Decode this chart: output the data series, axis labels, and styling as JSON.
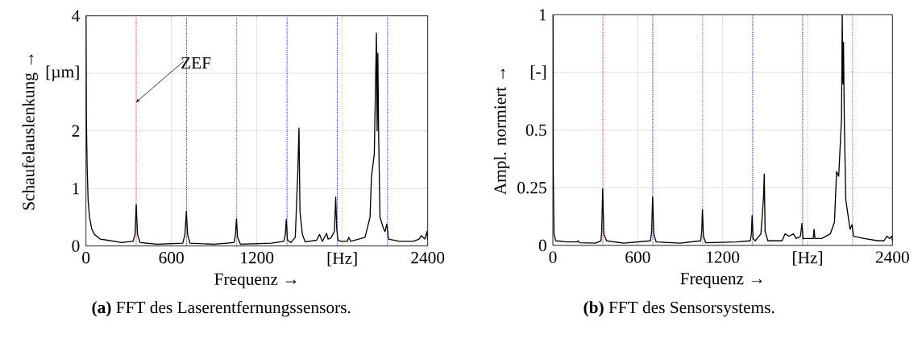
{
  "chart_data": [
    {
      "type": "line",
      "xlabel": "Frequenz →",
      "ylabel": "Schaufelauslenkung →",
      "color": "#000000",
      "x": [
        0,
        3,
        8,
        15,
        25,
        40,
        60,
        100,
        150,
        250,
        330,
        345,
        353,
        362,
        380,
        500,
        680,
        695,
        705,
        714,
        730,
        900,
        1040,
        1050,
        1057,
        1065,
        1085,
        1300,
        1390,
        1400,
        1407,
        1415,
        1440,
        1470,
        1488,
        1496,
        1503,
        1520,
        1540,
        1620,
        1640,
        1660,
        1690,
        1700,
        1720,
        1745,
        1754,
        1761,
        1770,
        1790,
        1835,
        1846,
        1860,
        1960,
        1995,
        2005,
        2025,
        2040,
        2045,
        2050,
        2055,
        2065,
        2090,
        2100,
        2113,
        2125,
        2200,
        2300,
        2340,
        2355,
        2380,
        2395,
        2400
      ],
      "values": [
        4.0,
        2.2,
        1.4,
        0.8,
        0.5,
        0.3,
        0.2,
        0.12,
        0.1,
        0.06,
        0.08,
        0.2,
        0.72,
        0.2,
        0.06,
        0.03,
        0.05,
        0.2,
        0.6,
        0.2,
        0.05,
        0.03,
        0.06,
        0.2,
        0.47,
        0.15,
        0.03,
        0.05,
        0.08,
        0.2,
        0.46,
        0.1,
        0.06,
        0.15,
        1.3,
        2.05,
        0.6,
        0.2,
        0.07,
        0.1,
        0.2,
        0.08,
        0.22,
        0.12,
        0.14,
        0.25,
        0.85,
        0.3,
        0.1,
        0.08,
        0.08,
        0.15,
        0.08,
        0.15,
        0.5,
        1.2,
        1.6,
        3.7,
        2.0,
        3.35,
        2.0,
        0.5,
        0.3,
        0.25,
        0.38,
        0.12,
        0.08,
        0.08,
        0.12,
        0.18,
        0.12,
        0.25,
        0.1
      ],
      "xlim": [
        0,
        2400
      ],
      "ylim": [
        0,
        4
      ],
      "xticks": [
        0,
        600,
        1200,
        {
          "value": 1800,
          "label": "[Hz]"
        },
        2400
      ],
      "yticks": [
        0,
        1,
        2,
        {
          "value": 3,
          "label": "[µm]"
        },
        4
      ],
      "grid": true,
      "ref_lines": [
        {
          "axis": "x",
          "value": 353,
          "color": "#ff0000",
          "line_style": "dotted"
        },
        {
          "axis": "x",
          "value": 706,
          "color": "#0000ff",
          "line_style": "dotted"
        },
        {
          "axis": "x",
          "value": 1059,
          "color": "#0000ff",
          "line_style": "dotted"
        },
        {
          "axis": "x",
          "value": 1412,
          "color": "#0000ff",
          "line_style": "dotted"
        },
        {
          "axis": "x",
          "value": 1765,
          "color": "#0000ff",
          "line_style": "dotted"
        },
        {
          "axis": "x",
          "value": 2118,
          "color": "#0000ff",
          "line_style": "dotted"
        }
      ],
      "annotations": [
        {
          "text": "ZEF",
          "x": 353,
          "y": 2.5
        },
        "**(a)** FFT des Laserentfernungssensors."
      ]
    },
    {
      "type": "line",
      "xlabel": "Frequenz →",
      "ylabel": "Ampl. normiert →",
      "color": "#000000",
      "x": [
        0,
        3,
        8,
        20,
        100,
        170,
        179,
        188,
        300,
        340,
        345,
        352,
        360,
        380,
        500,
        690,
        698,
        705,
        713,
        730,
        900,
        1045,
        1052,
        1057,
        1064,
        1080,
        1300,
        1395,
        1403,
        1408,
        1415,
        1430,
        1470,
        1488,
        1494,
        1500,
        1520,
        1620,
        1640,
        1670,
        1700,
        1720,
        1750,
        1760,
        1768,
        1790,
        1840,
        1846,
        1852,
        1900,
        1960,
        1990,
        2005,
        2020,
        2040,
        2045,
        2050,
        2054,
        2060,
        2070,
        2100,
        2114,
        2125,
        2200,
        2300,
        2340,
        2360,
        2380,
        2395,
        2400
      ],
      "values": [
        1.0,
        0.3,
        0.05,
        0.02,
        0.015,
        0.015,
        0.02,
        0.012,
        0.01,
        0.02,
        0.06,
        0.245,
        0.05,
        0.02,
        0.01,
        0.02,
        0.06,
        0.21,
        0.05,
        0.015,
        0.01,
        0.02,
        0.06,
        0.155,
        0.04,
        0.012,
        0.015,
        0.02,
        0.05,
        0.13,
        0.03,
        0.02,
        0.05,
        0.2,
        0.31,
        0.06,
        0.02,
        0.02,
        0.05,
        0.04,
        0.05,
        0.03,
        0.04,
        0.095,
        0.03,
        0.03,
        0.03,
        0.07,
        0.03,
        0.03,
        0.05,
        0.1,
        0.32,
        0.3,
        0.55,
        1.0,
        0.7,
        0.88,
        0.53,
        0.2,
        0.07,
        0.09,
        0.04,
        0.03,
        0.02,
        0.02,
        0.04,
        0.03,
        0.04,
        0.02
      ],
      "xlim": [
        0,
        2400
      ],
      "ylim": [
        0,
        1
      ],
      "xticks": [
        0,
        600,
        1200,
        {
          "value": 1800,
          "label": "[Hz]"
        },
        2400
      ],
      "yticks": [
        0,
        0.25,
        0.5,
        {
          "value": 0.75,
          "label": "[-]"
        },
        1
      ],
      "grid": true,
      "ref_lines": [
        {
          "axis": "x",
          "value": 353,
          "color": "#ff0000",
          "line_style": "dotted"
        },
        {
          "axis": "x",
          "value": 706,
          "color": "#0000ff",
          "line_style": "dotted"
        },
        {
          "axis": "x",
          "value": 1059,
          "color": "#0000ff",
          "line_style": "dotted"
        },
        {
          "axis": "x",
          "value": 1412,
          "color": "#0000ff",
          "line_style": "dotted"
        },
        {
          "axis": "x",
          "value": 1765,
          "color": "#0000ff",
          "line_style": "dotted"
        },
        {
          "axis": "x",
          "value": 2118,
          "color": "#0000ff",
          "line_style": "dotted"
        }
      ],
      "annotations": [
        "**(b)** FFT des Sensorsystems."
      ]
    }
  ]
}
